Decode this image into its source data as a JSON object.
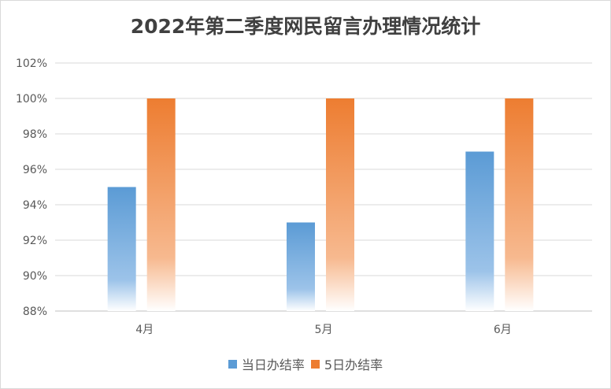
{
  "chart_data": {
    "type": "bar",
    "title": "2022年第二季度网民留言办理情况统计",
    "categories": [
      "4月",
      "5月",
      "6月"
    ],
    "series": [
      {
        "name": "当日办结率",
        "values": [
          95,
          93,
          97
        ],
        "color": "#5b9bd5"
      },
      {
        "name": "5日办结率",
        "values": [
          100,
          100,
          100
        ],
        "color": "#ed7d31"
      }
    ],
    "ylim": [
      88,
      102
    ],
    "yticks": [
      88,
      90,
      92,
      94,
      96,
      98,
      100,
      102
    ],
    "ytick_labels": [
      "88%",
      "90%",
      "92%",
      "94%",
      "96%",
      "98%",
      "100%",
      "102%"
    ],
    "grid": true,
    "legend": "bottom"
  }
}
